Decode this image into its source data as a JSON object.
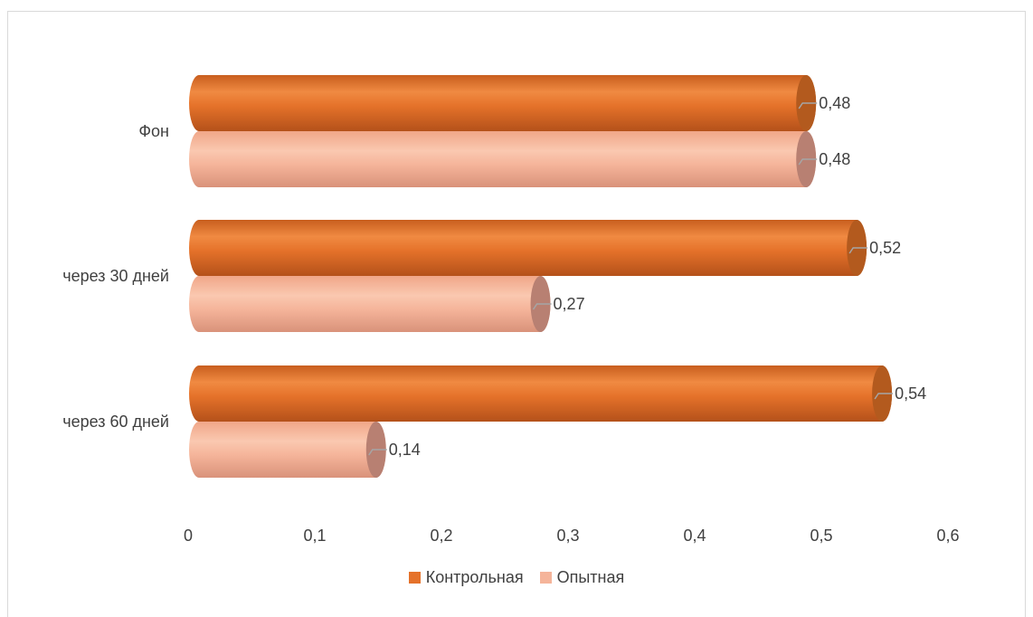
{
  "chart_data": {
    "type": "bar",
    "orientation": "horizontal",
    "style": "3d-cylinder",
    "categories": [
      "Фон",
      "через 30 дней",
      "через 60 дней"
    ],
    "series": [
      {
        "name": "Контрольная",
        "values": [
          0.48,
          0.52,
          0.54
        ],
        "labels": [
          "0,48",
          "0,52",
          "0,54"
        ],
        "color": "#E5722A"
      },
      {
        "name": "Опытная",
        "values": [
          0.48,
          0.27,
          0.14
        ],
        "labels": [
          "0,48",
          "0,27",
          "0,14"
        ],
        "color": "#F5B49A"
      }
    ],
    "xlim": [
      0,
      0.6
    ],
    "xticks": [
      "0",
      "0,1",
      "0,2",
      "0,3",
      "0,4",
      "0,5",
      "0,6"
    ],
    "grid": false,
    "legend": "bottom"
  }
}
